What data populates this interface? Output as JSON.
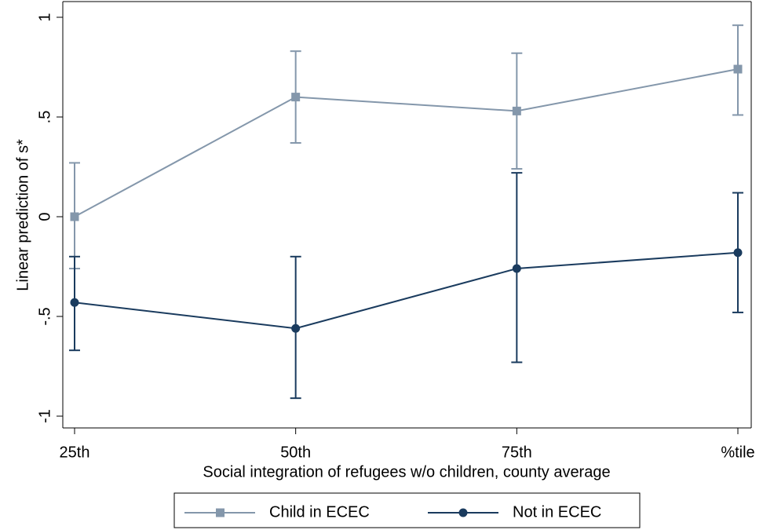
{
  "chart_data": {
    "type": "line",
    "x_label": "Social integration of refugees w/o children, county average",
    "y_label": "Linear prediction of s*",
    "categories": [
      "25th",
      "50th",
      "75th",
      "%tile"
    ],
    "ylim": [
      -1,
      1
    ],
    "yticks": [
      -1,
      {
        "value": -0.5,
        "label": "-.5"
      },
      0,
      {
        "value": 0.5,
        "label": ".5"
      },
      1
    ],
    "legend": "bottom",
    "series": [
      {
        "name": "Child in ECEC",
        "color": "#8497ab",
        "marker": "square",
        "values": [
          0.0,
          0.6,
          0.53,
          0.74
        ],
        "ci_low": [
          -0.26,
          0.37,
          0.24,
          0.51
        ],
        "ci_high": [
          0.27,
          0.83,
          0.82,
          0.96
        ]
      },
      {
        "name": "Not in ECEC",
        "color": "#1a3b5e",
        "marker": "circle",
        "values": [
          -0.43,
          -0.56,
          -0.26,
          -0.18
        ],
        "ci_low": [
          -0.67,
          -0.91,
          -0.73,
          -0.48
        ],
        "ci_high": [
          -0.2,
          -0.2,
          0.22,
          0.12
        ]
      }
    ]
  }
}
